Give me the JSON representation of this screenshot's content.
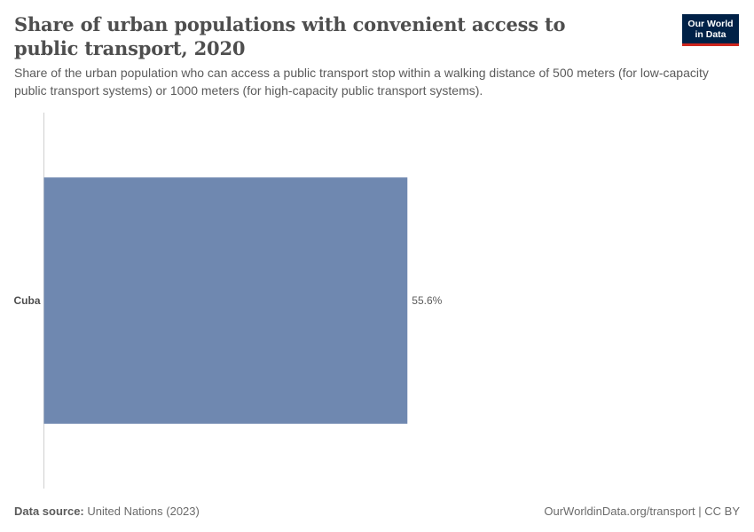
{
  "header": {
    "title": "Share of urban populations with convenient access to public transport, 2020",
    "subtitle": "Share of the urban population who can access a public transport stop within a walking distance of 500 meters (for low-capacity public transport systems) or 1000 meters (for high-capacity public transport systems).",
    "logo_line1": "Our World",
    "logo_line2": "in Data"
  },
  "footer": {
    "source_label": "Data source:",
    "source_value": "United Nations (2023)",
    "link_text": "OurWorldinData.org/transport | CC BY"
  },
  "colors": {
    "bar": "#6f88b0",
    "axis": "#d0d0d0",
    "logo_bg": "#002147",
    "logo_accent": "#ce261e"
  },
  "chart_data": {
    "type": "bar",
    "orientation": "horizontal",
    "categories": [
      "Cuba"
    ],
    "values": [
      55.6
    ],
    "value_labels": [
      "55.6%"
    ],
    "unit": "%",
    "xlim": [
      0,
      100
    ],
    "grid": false,
    "legend": "none"
  }
}
